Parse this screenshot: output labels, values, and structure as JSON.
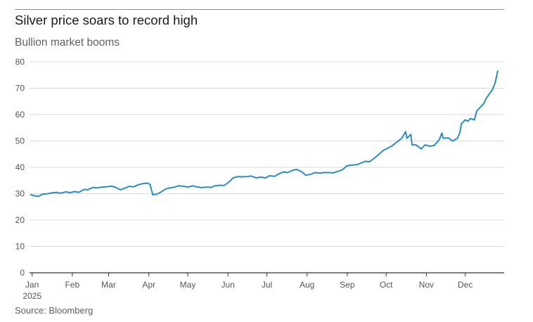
{
  "header": {
    "title": "Silver price soars to record high",
    "subtitle": "Bullion market booms"
  },
  "footer": {
    "source": "Source: Bloomberg"
  },
  "colors": {
    "line": "#2a8bc9",
    "grid": "#d9d9d9",
    "axis": "#333333",
    "text": "#555555"
  },
  "chart_data": {
    "type": "line",
    "title": "Silver price soars to record high",
    "subtitle": "Bullion market booms",
    "xlabel": "",
    "ylabel": "",
    "ylim": [
      0,
      80
    ],
    "yticks": [
      0,
      10,
      20,
      30,
      40,
      50,
      60,
      70,
      80
    ],
    "xlim": [
      "2024-12-30",
      "2025-12-31"
    ],
    "xticks": [
      {
        "date": "2025-01-01",
        "label": "Jan",
        "sublabel": "2025"
      },
      {
        "date": "2025-02-01",
        "label": "Feb"
      },
      {
        "date": "2025-03-01",
        "label": "Mar"
      },
      {
        "date": "2025-04-01",
        "label": "Apr"
      },
      {
        "date": "2025-05-01",
        "label": "May"
      },
      {
        "date": "2025-06-01",
        "label": "Jun"
      },
      {
        "date": "2025-07-01",
        "label": "Jul"
      },
      {
        "date": "2025-08-01",
        "label": "Aug"
      },
      {
        "date": "2025-09-01",
        "label": "Sep"
      },
      {
        "date": "2025-10-01",
        "label": "Oct"
      },
      {
        "date": "2025-11-01",
        "label": "Nov"
      },
      {
        "date": "2025-12-01",
        "label": "Dec"
      }
    ],
    "grid": true,
    "legend": "none",
    "series": [
      {
        "points": [
          [
            "2024-12-31",
            29.6
          ],
          [
            "2025-01-03",
            29.2
          ],
          [
            "2025-01-06",
            29.0
          ],
          [
            "2025-01-09",
            29.8
          ],
          [
            "2025-01-13",
            30.0
          ],
          [
            "2025-01-16",
            30.3
          ],
          [
            "2025-01-20",
            30.5
          ],
          [
            "2025-01-23",
            30.2
          ],
          [
            "2025-01-27",
            30.7
          ],
          [
            "2025-01-30",
            30.4
          ],
          [
            "2025-02-03",
            30.8
          ],
          [
            "2025-02-06",
            30.5
          ],
          [
            "2025-02-10",
            31.6
          ],
          [
            "2025-02-13",
            31.5
          ],
          [
            "2025-02-17",
            32.4
          ],
          [
            "2025-02-20",
            32.2
          ],
          [
            "2025-02-24",
            32.5
          ],
          [
            "2025-02-27",
            32.6
          ],
          [
            "2025-03-03",
            32.9
          ],
          [
            "2025-03-06",
            32.5
          ],
          [
            "2025-03-10",
            31.5
          ],
          [
            "2025-03-13",
            32.0
          ],
          [
            "2025-03-17",
            32.8
          ],
          [
            "2025-03-20",
            32.6
          ],
          [
            "2025-03-24",
            33.4
          ],
          [
            "2025-03-27",
            33.8
          ],
          [
            "2025-03-31",
            34.0
          ],
          [
            "2025-04-02",
            33.5
          ],
          [
            "2025-04-04",
            29.6
          ],
          [
            "2025-04-07",
            29.8
          ],
          [
            "2025-04-10",
            30.5
          ],
          [
            "2025-04-14",
            31.8
          ],
          [
            "2025-04-17",
            32.2
          ],
          [
            "2025-04-21",
            32.5
          ],
          [
            "2025-04-24",
            33.0
          ],
          [
            "2025-04-28",
            32.8
          ],
          [
            "2025-05-01",
            32.5
          ],
          [
            "2025-05-05",
            33.0
          ],
          [
            "2025-05-08",
            32.6
          ],
          [
            "2025-05-12",
            32.3
          ],
          [
            "2025-05-15",
            32.5
          ],
          [
            "2025-05-19",
            32.4
          ],
          [
            "2025-05-22",
            33.0
          ],
          [
            "2025-05-26",
            33.2
          ],
          [
            "2025-05-29",
            33.1
          ],
          [
            "2025-06-02",
            34.5
          ],
          [
            "2025-06-05",
            36.0
          ],
          [
            "2025-06-09",
            36.5
          ],
          [
            "2025-06-12",
            36.4
          ],
          [
            "2025-06-16",
            36.5
          ],
          [
            "2025-06-19",
            36.7
          ],
          [
            "2025-06-23",
            36.0
          ],
          [
            "2025-06-26",
            36.3
          ],
          [
            "2025-06-30",
            36.0
          ],
          [
            "2025-07-03",
            36.8
          ],
          [
            "2025-07-07",
            36.6
          ],
          [
            "2025-07-10",
            37.5
          ],
          [
            "2025-07-14",
            38.3
          ],
          [
            "2025-07-17",
            38.0
          ],
          [
            "2025-07-21",
            38.9
          ],
          [
            "2025-07-24",
            39.2
          ],
          [
            "2025-07-28",
            38.3
          ],
          [
            "2025-07-31",
            37.0
          ],
          [
            "2025-08-04",
            37.4
          ],
          [
            "2025-08-07",
            38.0
          ],
          [
            "2025-08-11",
            37.8
          ],
          [
            "2025-08-14",
            38.0
          ],
          [
            "2025-08-18",
            38.0
          ],
          [
            "2025-08-21",
            37.9
          ],
          [
            "2025-08-25",
            38.5
          ],
          [
            "2025-08-28",
            39.0
          ],
          [
            "2025-09-01",
            40.6
          ],
          [
            "2025-09-04",
            40.8
          ],
          [
            "2025-09-08",
            41.0
          ],
          [
            "2025-09-11",
            41.5
          ],
          [
            "2025-09-15",
            42.3
          ],
          [
            "2025-09-18",
            42.1
          ],
          [
            "2025-09-22",
            43.5
          ],
          [
            "2025-09-25",
            44.8
          ],
          [
            "2025-09-29",
            46.5
          ],
          [
            "2025-10-02",
            47.2
          ],
          [
            "2025-10-06",
            48.3
          ],
          [
            "2025-10-09",
            49.5
          ],
          [
            "2025-10-13",
            51.0
          ],
          [
            "2025-10-16",
            53.5
          ],
          [
            "2025-10-17",
            51.0
          ],
          [
            "2025-10-20",
            52.5
          ],
          [
            "2025-10-21",
            48.5
          ],
          [
            "2025-10-24",
            48.5
          ],
          [
            "2025-10-28",
            47.0
          ],
          [
            "2025-10-31",
            48.5
          ],
          [
            "2025-11-04",
            48.0
          ],
          [
            "2025-11-07",
            48.3
          ],
          [
            "2025-11-11",
            50.5
          ],
          [
            "2025-11-13",
            53.0
          ],
          [
            "2025-11-14",
            51.0
          ],
          [
            "2025-11-18",
            51.2
          ],
          [
            "2025-11-21",
            50.0
          ],
          [
            "2025-11-25",
            51.0
          ],
          [
            "2025-11-27",
            53.5
          ],
          [
            "2025-11-28",
            56.5
          ],
          [
            "2025-12-01",
            58.0
          ],
          [
            "2025-12-03",
            57.5
          ],
          [
            "2025-12-05",
            58.5
          ],
          [
            "2025-12-08",
            58.0
          ],
          [
            "2025-12-10",
            61.5
          ],
          [
            "2025-12-12",
            62.5
          ],
          [
            "2025-12-15",
            64.0
          ],
          [
            "2025-12-17",
            66.0
          ],
          [
            "2025-12-19",
            67.5
          ],
          [
            "2025-12-22",
            69.5
          ],
          [
            "2025-12-24",
            72.0
          ],
          [
            "2025-12-26",
            76.5
          ]
        ]
      }
    ]
  }
}
